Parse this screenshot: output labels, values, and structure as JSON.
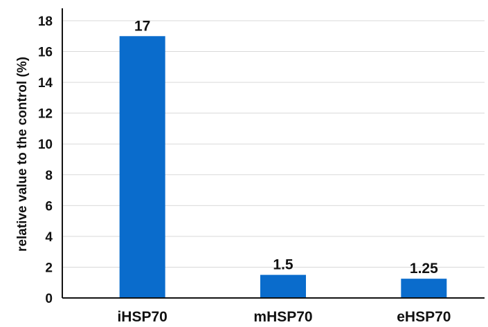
{
  "chart_data": {
    "type": "bar",
    "title": "",
    "xlabel": "",
    "ylabel": "relative value to the control (%)",
    "categories": [
      "iHSP70",
      "mHSP70",
      "eHSP70"
    ],
    "values": [
      17,
      1.5,
      1.25
    ],
    "data_labels": [
      "17",
      "1.5",
      "1.25"
    ],
    "ylim": [
      0,
      18
    ],
    "yticks": [
      0,
      2,
      4,
      6,
      8,
      10,
      12,
      14,
      16,
      18
    ],
    "grid": true,
    "legend": "none",
    "bar_color": "#0a6ccc"
  }
}
